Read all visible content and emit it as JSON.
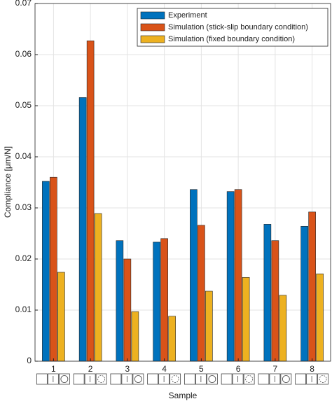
{
  "chart_data": {
    "type": "bar",
    "x_label": "Sample",
    "y_label": "Compliance [μm/N]",
    "categories": [
      "1",
      "2",
      "3",
      "4",
      "5",
      "6",
      "7",
      "8"
    ],
    "series": [
      {
        "name": "Experiment",
        "color": "#0072BD",
        "values": [
          0.0352,
          0.0516,
          0.0236,
          0.0233,
          0.0336,
          0.0332,
          0.0268,
          0.0264
        ]
      },
      {
        "name": "Simulation (stick-slip boundary condition)",
        "color": "#D95319",
        "values": [
          0.036,
          0.0627,
          0.02,
          0.024,
          0.0266,
          0.0336,
          0.0236,
          0.0292
        ]
      },
      {
        "name": "Simulation (fixed boundary condition)",
        "color": "#EDB120",
        "values": [
          0.0174,
          0.0289,
          0.0097,
          0.0088,
          0.0137,
          0.0164,
          0.0129,
          0.0171
        ]
      }
    ],
    "ylim": [
      0,
      0.07
    ],
    "yticks": [
      0,
      0.01,
      0.02,
      0.03,
      0.04,
      0.05,
      0.06,
      0.07
    ],
    "grid": true,
    "legend": "top-right"
  }
}
